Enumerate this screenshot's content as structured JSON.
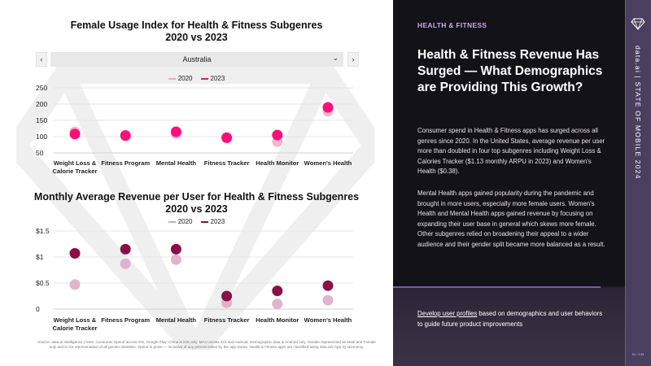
{
  "source_note": "Source: data.ai Intelligence | Note: Consumer Spend across iOS, Google Play; China is iOS only. MAU across iOS and Android. Demographic data is Android only. Gender represented as Male and Female only and is not representative of all gender identities. Spend is gross — inclusive of any percent taken by the app stores. Health & Fitness apps are classified using data.ai's App IQ taxonomy.",
  "selector": {
    "prev": "‹",
    "next": "›",
    "value": "Australia",
    "caret": "⌄"
  },
  "colors": {
    "c2020": "#f4a8c7",
    "c2023": "#ff0f7b",
    "a2020": "#dca6c6",
    "a2023": "#8c0e47",
    "panel": "#131217",
    "accent": "#c9a6f2",
    "side": "#4b3f60"
  },
  "chart_data": [
    {
      "type": "scatter",
      "title": "Female Usage Index for Health & Fitness Subgenres\n2020 vs 2023",
      "categories": [
        "Weight Loss & Calorie Tracker",
        "Fitness Program",
        "Mental Health",
        "Fitness Tracker",
        "Health Monitor",
        "Women's Health"
      ],
      "series": [
        {
          "name": "2020",
          "values": [
            115,
            105,
            110,
            95,
            85,
            178
          ]
        },
        {
          "name": "2023",
          "values": [
            108,
            103,
            115,
            97,
            105,
            190
          ]
        }
      ],
      "yticks": [
        "50",
        "100",
        "150",
        "200",
        "250"
      ],
      "ylim": [
        50,
        250
      ]
    },
    {
      "type": "scatter",
      "title": "Monthly Average Revenue per User for Health & Fitness Subgenres\n2020 vs 2023",
      "categories": [
        "Weight Loss & Calorie Tracker",
        "Fitness Program",
        "Mental Health",
        "Fitness Tracker",
        "Health Monitor",
        "Women's Health"
      ],
      "series": [
        {
          "name": "2020",
          "values": [
            0.47,
            0.87,
            0.95,
            0.12,
            0.1,
            0.17
          ]
        },
        {
          "name": "2023",
          "values": [
            1.07,
            1.15,
            1.15,
            0.25,
            0.35,
            0.45
          ]
        }
      ],
      "yticks": [
        "0",
        "$0.5",
        "$1",
        "$1.5"
      ],
      "ylim": [
        0,
        1.5
      ]
    }
  ],
  "panel": {
    "tag": "HEALTH & FITNESS",
    "headline": "Health & Fitness Revenue Has Surged — What Demographics are Providing This Growth?",
    "para1": "Consumer spend in Health & Fitness apps has surged across all genres since 2020. In the United States, average revenue per user more than doubled in four top subgenres including Weight Loss & Calories Tracker ($1.13 monthly ARPU in 2023) and Women's Health ($0.38).",
    "para2": "Mental Health apps gained popularity during the pandemic and brought in more users, especially more female users. Women's Health and Mental Health apps gained revenue by focusing on expanding their user base in general which skews more female. Other subgenres relied on broadening their appeal to a wider audience and their gender split became more balanced as a result.",
    "cta_link": "Develop user profiles",
    "cta_rest": " based on demographics and user behaviors to guide future product improvements"
  },
  "side": {
    "label": "data.ai | STATE OF MOBILE 2024",
    "page": "91 / 133"
  }
}
